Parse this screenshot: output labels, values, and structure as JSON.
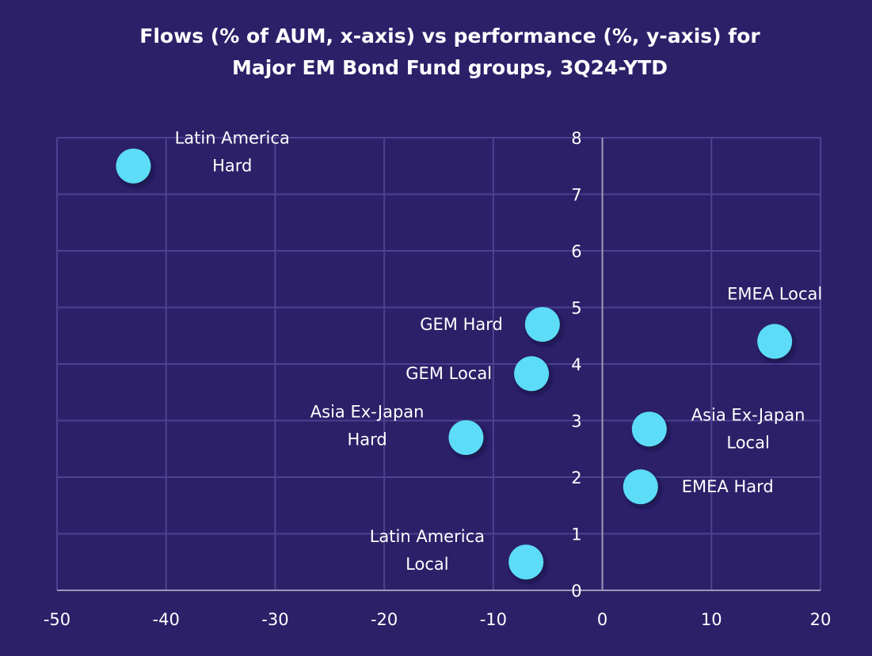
{
  "chart_data": {
    "type": "scatter",
    "title_lines": [
      "Flows (% of AUM, x-axis) vs performance (%, y-axis) for",
      "Major EM Bond Fund groups, 3Q24-YTD"
    ],
    "xlabel": "",
    "ylabel": "",
    "xlim": [
      -50,
      20
    ],
    "ylim": [
      0,
      8
    ],
    "xticks": [
      -50,
      -40,
      -30,
      -20,
      -10,
      0,
      10,
      20
    ],
    "yticks": [
      0,
      1,
      2,
      3,
      4,
      5,
      6,
      7,
      8
    ],
    "grid": true,
    "marker_color": "#5ddcf7",
    "background_color": "#2c2069",
    "points": [
      {
        "label_lines": [
          "Latin America",
          "Hard"
        ],
        "x": -43,
        "y": 7.5,
        "label_pos": "right"
      },
      {
        "label_lines": [
          "GEM Hard"
        ],
        "x": -5.5,
        "y": 4.7,
        "label_pos": "left"
      },
      {
        "label_lines": [
          "GEM Local"
        ],
        "x": -6.5,
        "y": 3.83,
        "label_pos": "left"
      },
      {
        "label_lines": [
          "Asia Ex-Japan",
          "Hard"
        ],
        "x": -12.5,
        "y": 2.7,
        "label_pos": "left"
      },
      {
        "label_lines": [
          "Latin America",
          "Local"
        ],
        "x": -7,
        "y": 0.5,
        "label_pos": "left"
      },
      {
        "label_lines": [
          "EMEA Local"
        ],
        "x": 15.8,
        "y": 4.4,
        "label_pos": "top"
      },
      {
        "label_lines": [
          "Asia Ex-Japan",
          "Local"
        ],
        "x": 4.3,
        "y": 2.85,
        "label_pos": "right"
      },
      {
        "label_lines": [
          "EMEA Hard"
        ],
        "x": 3.5,
        "y": 1.83,
        "label_pos": "right"
      }
    ]
  }
}
